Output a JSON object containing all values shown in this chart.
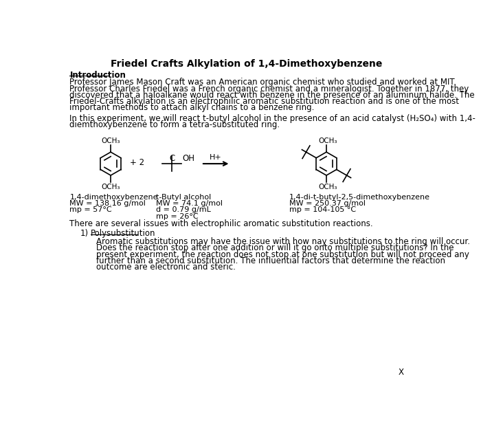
{
  "title": "Friedel Crafts Alkylation of 1,4-Dimethoxybenzene",
  "intro_heading": "Introduction",
  "intro_text": "Professor James Mason Craft was an American organic chemist who studied and worked at MIT.\nProfessor Charles Friedel was a French organic chemist and a mineralogist. Together in 1877, they\ndiscovered that a haloalkane would react with benzene in the presence of an aluminum halide. The\nFriedel-Crafts alkylation is an electrophilic aromatic substitution reaction and is one of the most\nimportant methods to attach alkyl chains to a benzene ring.",
  "experiment_line1": "In this experiment, we will react t-butyl alcohol in the presence of an acid catalyst (H₂SO₄) with 1,4-",
  "experiment_line2": "diemthoxybenzene to form a tetra-substituted ring.",
  "compound1_name": "1,4-dimethoxybenzene",
  "compound1_mw": "MW = 138.16 g/mol",
  "compound1_mp": "mp = 57°C",
  "compound2_name": "t-Butyl alcohol",
  "compound2_mw": "MW = 74.1 g/mol",
  "compound2_d": "d = 0.79 g/mL",
  "compound2_mp": "mp = 26°C",
  "product_name": "1,4-di-t-butyl-2,5-dimethoxybenzene",
  "product_mw": "MW = 250.37 g/mol",
  "product_mp": "mp = 104-105 °C",
  "issues_text": "There are several issues with electrophilic aromatic substitution reactions.",
  "poly_heading": "Polysubstitution",
  "poly_text": "Aromatic substitutions may have the issue with how nay substitutions to the ring will occur.\nDoes the reaction stop after one addition or will it go onto multiple substitutions? In the\npresent experiment, the reaction does not stop at one substitution but will not proceed any\nfurther than a second substitution. The influential factors that determine the reaction\noutcome are electronic and steric.",
  "page_marker": "X",
  "bg_color": "#ffffff",
  "text_color": "#000000",
  "font_size_title": 10,
  "font_size_body": 8.5,
  "font_size_small": 8
}
